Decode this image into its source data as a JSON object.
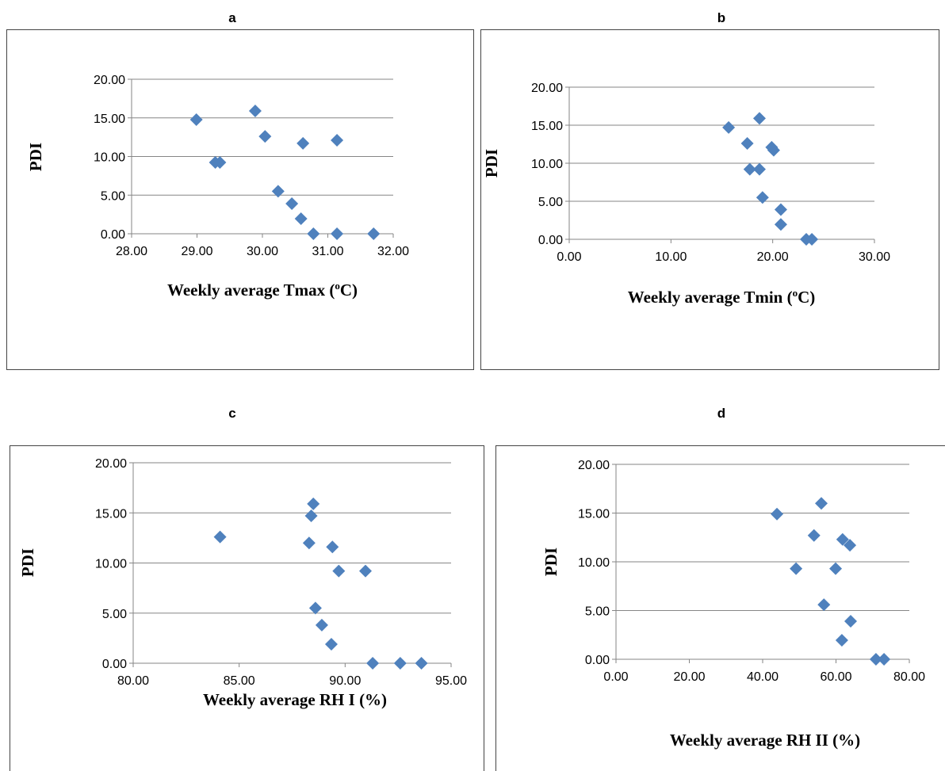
{
  "chart_data": [
    {
      "type": "scatter",
      "title": "a",
      "xlabel": [
        "Weekly average Tmax (",
        "o",
        "C)"
      ],
      "ylabel": "PDI",
      "color": "#4f81bd",
      "x": [
        28.99,
        29.28,
        29.35,
        29.89,
        30.04,
        30.24,
        30.45,
        30.59,
        30.62,
        30.78,
        31.14,
        31.14,
        31.7
      ],
      "values": [
        14.77,
        9.23,
        9.23,
        15.9,
        12.6,
        5.5,
        3.9,
        1.95,
        11.7,
        0,
        12.1,
        0,
        0
      ],
      "xlim": [
        28,
        32
      ],
      "ylim": [
        0,
        20
      ],
      "xticks": [
        {
          "value": 28,
          "label": "28.00"
        },
        {
          "value": 29,
          "label": "29.00"
        },
        {
          "value": 30,
          "label": "30.00"
        },
        {
          "value": 31,
          "label": "31.00"
        },
        {
          "value": 32,
          "label": "32.00"
        }
      ],
      "yticks": [
        {
          "value": 0,
          "label": "0.00"
        },
        {
          "value": 5,
          "label": "5.00"
        },
        {
          "value": 10,
          "label": "10.00"
        },
        {
          "value": 15,
          "label": "15.00"
        },
        {
          "value": 20,
          "label": "20.00"
        }
      ],
      "grid": true
    },
    {
      "type": "scatter",
      "title": "b",
      "xlabel": [
        "Weekly average Tmin (",
        "o",
        "C)"
      ],
      "ylabel": "PDI",
      "color": "#4f81bd",
      "x": [
        15.67,
        17.5,
        17.75,
        18.7,
        18.7,
        19.0,
        19.9,
        20.1,
        20.8,
        20.8,
        23.3,
        23.85
      ],
      "values": [
        14.7,
        12.6,
        9.2,
        9.2,
        15.9,
        5.5,
        12.1,
        11.7,
        3.9,
        1.95,
        0,
        0
      ],
      "xlim": [
        0,
        30
      ],
      "ylim": [
        0,
        20
      ],
      "xticks": [
        {
          "value": 0,
          "label": "0.00"
        },
        {
          "value": 10,
          "label": "10.00"
        },
        {
          "value": 20,
          "label": "20.00"
        },
        {
          "value": 30,
          "label": "30.00"
        }
      ],
      "yticks": [
        {
          "value": 0,
          "label": "0.00"
        },
        {
          "value": 5,
          "label": "5.00"
        },
        {
          "value": 10,
          "label": "10.00"
        },
        {
          "value": 15,
          "label": "15.00"
        },
        {
          "value": 20,
          "label": "20.00"
        }
      ],
      "grid": true
    },
    {
      "type": "scatter",
      "title": "c",
      "xlabel": [
        "Weekly average RH I (%)"
      ],
      "ylabel": "PDI",
      "color": "#4f81bd",
      "x": [
        84.1,
        88.4,
        88.5,
        88.3,
        89.4,
        89.7,
        90.96,
        88.6,
        88.9,
        89.35,
        91.3,
        92.6,
        93.6
      ],
      "values": [
        12.6,
        14.7,
        15.9,
        12.0,
        11.6,
        9.2,
        9.2,
        5.5,
        3.8,
        1.9,
        0,
        0,
        0
      ],
      "xlim": [
        80,
        95
      ],
      "ylim": [
        0,
        20
      ],
      "xticks": [
        {
          "value": 80,
          "label": "80.00"
        },
        {
          "value": 85,
          "label": "85.00"
        },
        {
          "value": 90,
          "label": "90.00"
        },
        {
          "value": 95,
          "label": "95.00"
        }
      ],
      "yticks": [
        {
          "value": 0,
          "label": "0.00"
        },
        {
          "value": 5,
          "label": "5.00"
        },
        {
          "value": 10,
          "label": "10.00"
        },
        {
          "value": 15,
          "label": "15.00"
        },
        {
          "value": 20,
          "label": "20.00"
        }
      ],
      "grid": true
    },
    {
      "type": "scatter",
      "title": "d",
      "xlabel": [
        "Weekly average RH II (%)"
      ],
      "ylabel": "PDI",
      "color": "#4f81bd",
      "x": [
        43.9,
        49.1,
        54.0,
        56.0,
        56.7,
        59.9,
        61.8,
        63.8,
        61.6,
        64.0,
        70.9,
        73.1
      ],
      "values": [
        14.9,
        9.3,
        12.7,
        16.0,
        5.6,
        9.3,
        12.3,
        11.7,
        1.95,
        3.9,
        0,
        0
      ],
      "xlim": [
        0,
        80
      ],
      "ylim": [
        0,
        20
      ],
      "xticks": [
        {
          "value": 0,
          "label": "0.00"
        },
        {
          "value": 20,
          "label": "20.00"
        },
        {
          "value": 40,
          "label": "40.00"
        },
        {
          "value": 60,
          "label": "60.00"
        },
        {
          "value": 80,
          "label": "80.00"
        }
      ],
      "yticks": [
        {
          "value": 0,
          "label": "0.00"
        },
        {
          "value": 5,
          "label": "5.00"
        },
        {
          "value": 10,
          "label": "10.00"
        },
        {
          "value": 15,
          "label": "15.00"
        },
        {
          "value": 20,
          "label": "20.00"
        }
      ],
      "grid": true
    }
  ]
}
